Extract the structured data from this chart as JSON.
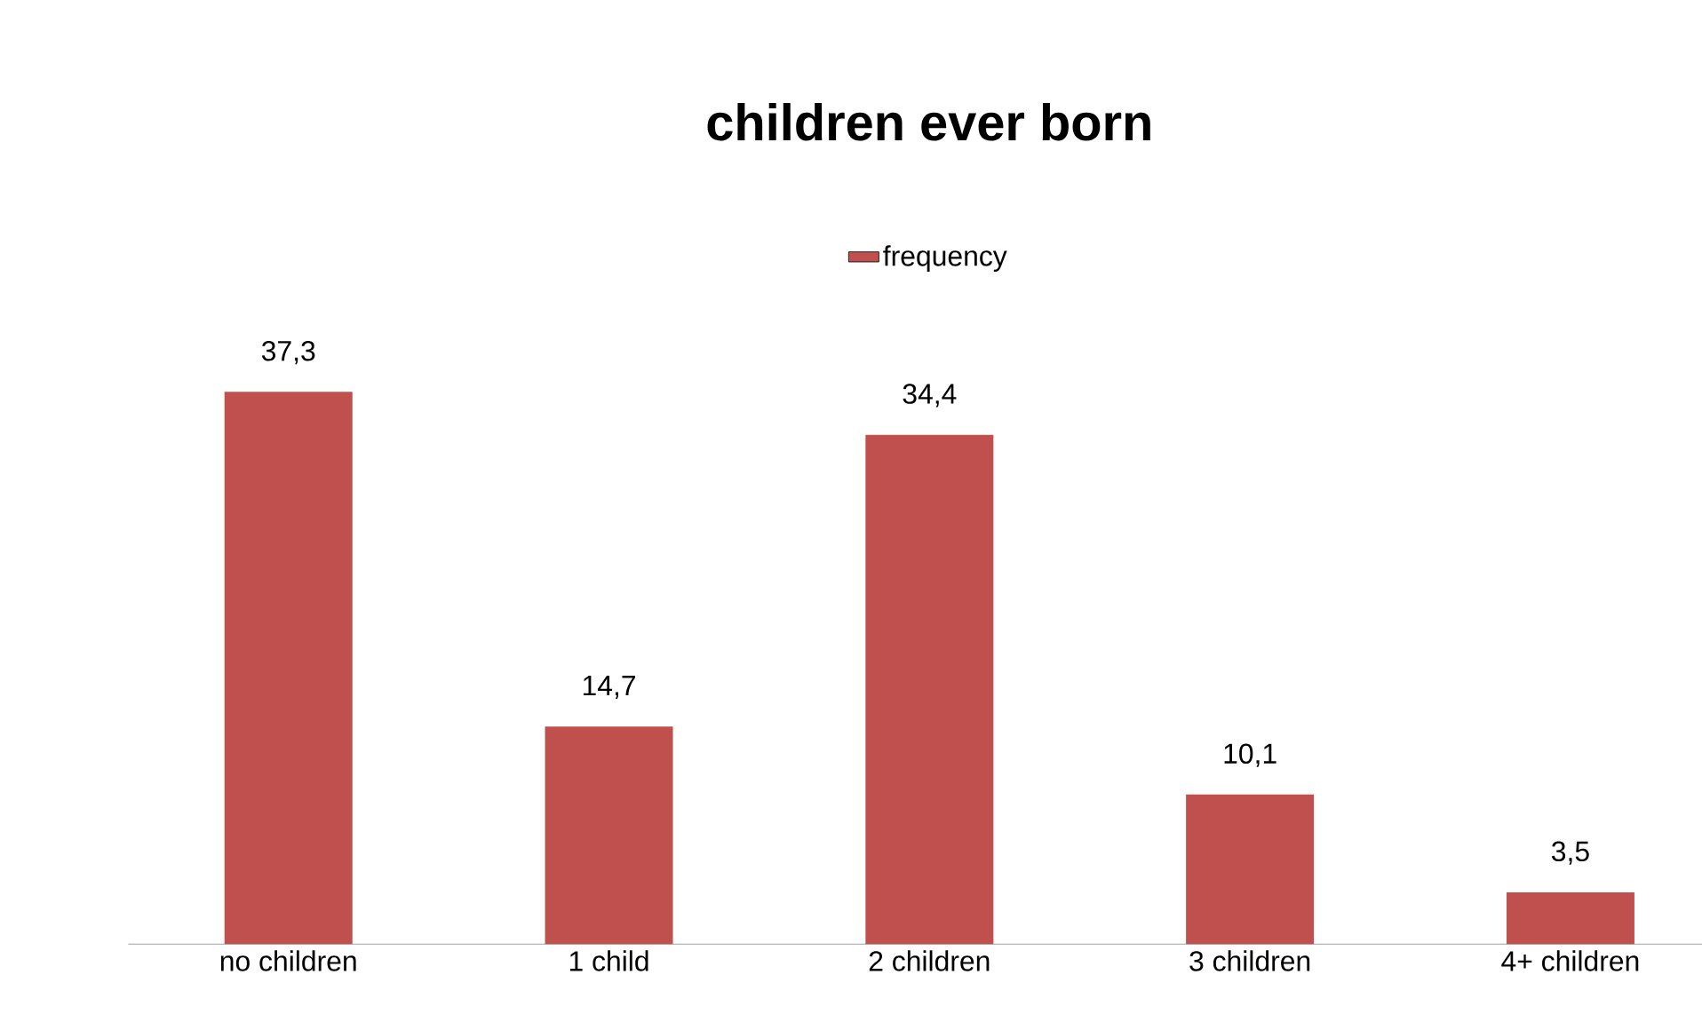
{
  "chart_data": {
    "type": "bar",
    "title": "children ever born",
    "categories": [
      "no children",
      "1 child",
      "2 children",
      "3 children",
      "4+ children"
    ],
    "series": [
      {
        "name": "frequency",
        "color": "#c0504d",
        "values": [
          37.3,
          14.7,
          34.4,
          10.1,
          3.5
        ],
        "value_labels": [
          "37,3",
          "14,7",
          "34,4",
          "10,1",
          "3,5"
        ]
      }
    ],
    "legend": "top"
  }
}
